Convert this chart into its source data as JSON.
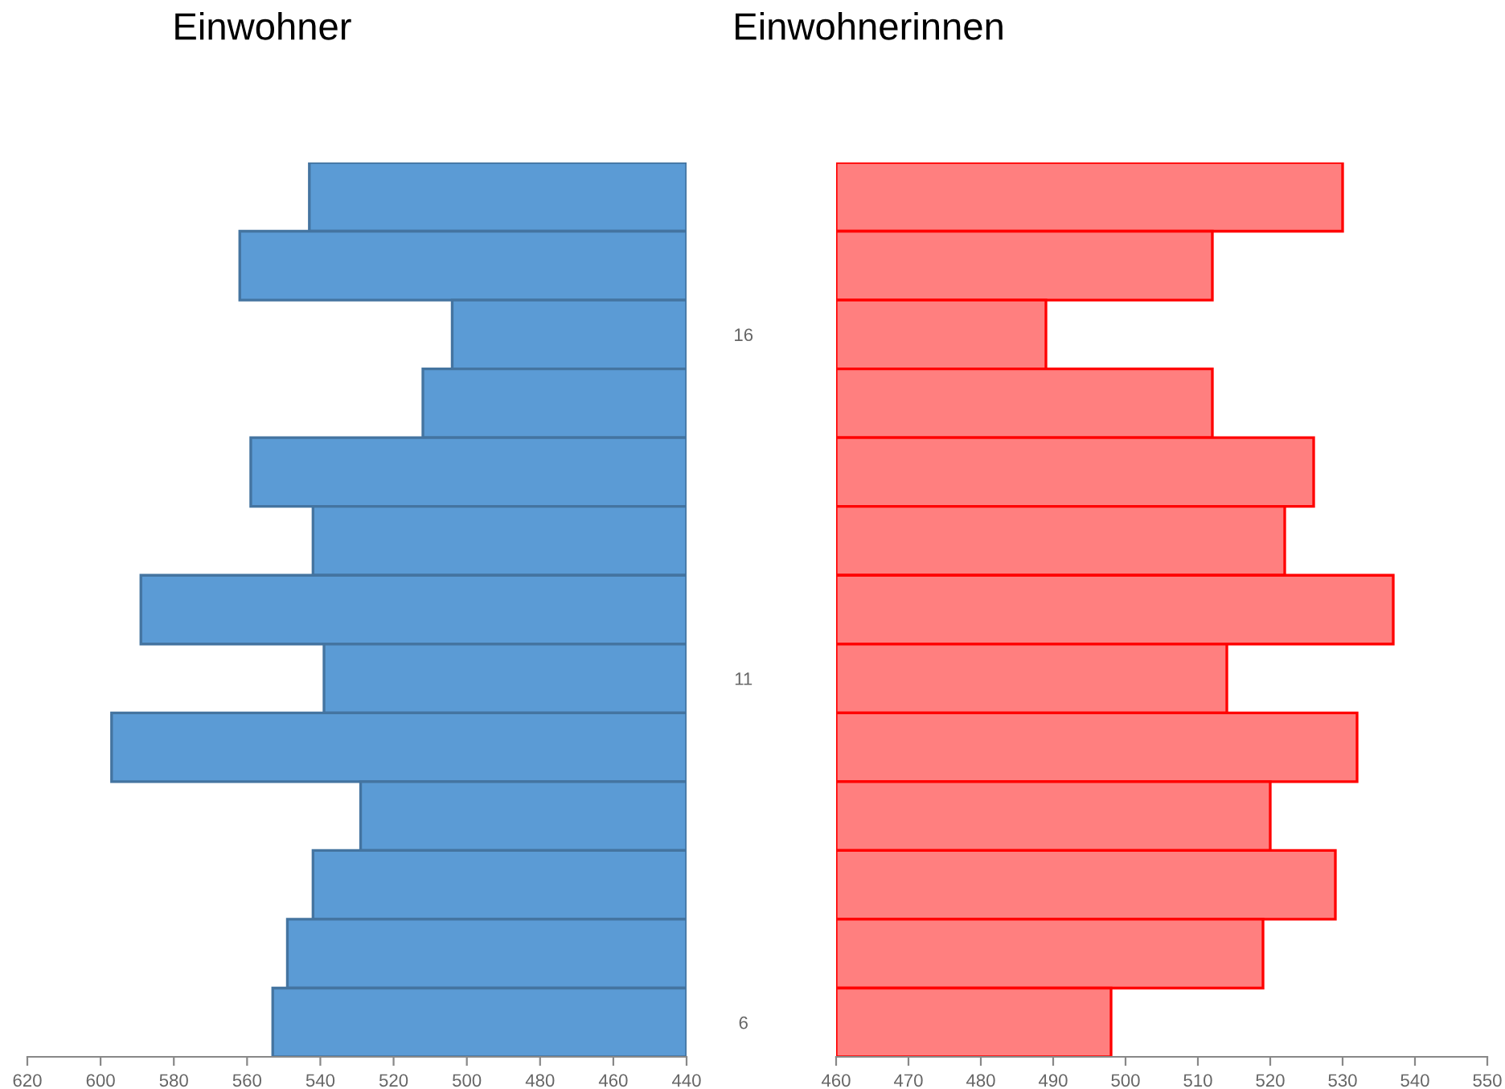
{
  "chart_data": [
    {
      "type": "bar",
      "orientation": "horizontal",
      "title": "Einwohner",
      "categories": [
        null,
        null,
        "16",
        null,
        null,
        null,
        null,
        "11",
        null,
        null,
        null,
        null,
        "6"
      ],
      "series": [
        {
          "color": "#5b9bd5",
          "values": [
            543,
            562,
            504,
            512,
            559,
            542,
            589,
            539,
            597,
            529,
            542,
            549,
            553
          ]
        }
      ],
      "xlim": [
        620,
        440
      ],
      "xticks": [
        620,
        600,
        580,
        560,
        540,
        520,
        500,
        480,
        460,
        440
      ],
      "tick_labels": "x",
      "grid": false,
      "legend": false
    },
    {
      "type": "bar",
      "orientation": "horizontal",
      "title": "Einwohnerinnen",
      "categories": [
        null,
        null,
        "16",
        null,
        null,
        null,
        null,
        "11",
        null,
        null,
        null,
        null,
        "6"
      ],
      "series": [
        {
          "color": "#ff7f7f",
          "values": [
            530,
            512,
            489,
            512,
            526,
            522,
            537,
            514,
            532,
            520,
            529,
            519,
            498
          ]
        }
      ],
      "xlim": [
        460,
        550
      ],
      "xticks": [
        460,
        470,
        480,
        490,
        500,
        510,
        520,
        530,
        540,
        550
      ],
      "grid": false,
      "legend": false
    }
  ]
}
